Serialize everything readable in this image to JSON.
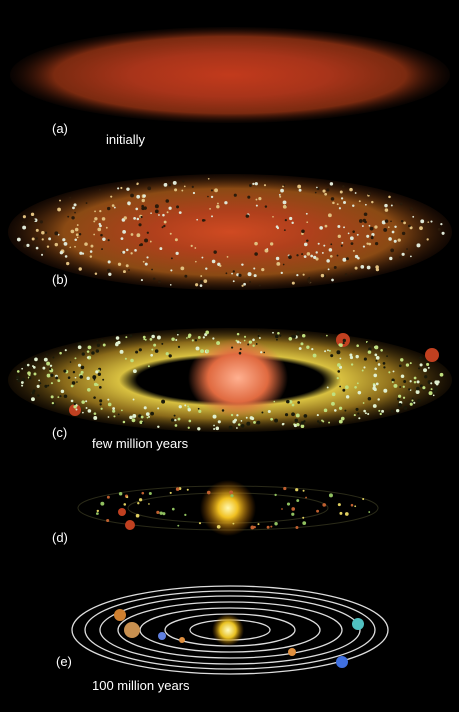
{
  "stages": [
    {
      "label": "(a)",
      "caption": "initially"
    },
    {
      "label": "(b)"
    },
    {
      "label": "(c)",
      "caption": "few million years"
    },
    {
      "label": "(d)"
    },
    {
      "label": "(e)",
      "caption": "100 million years"
    }
  ]
}
